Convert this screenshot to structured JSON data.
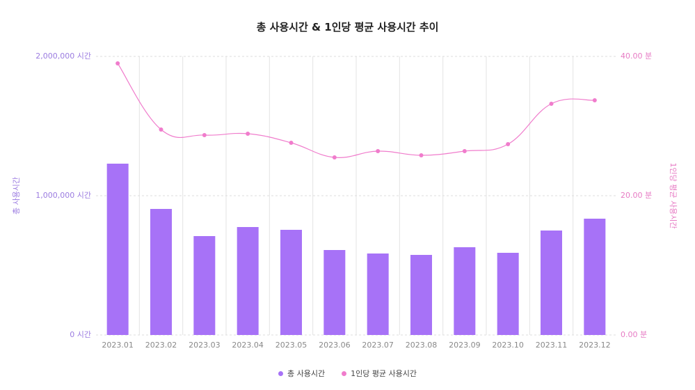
{
  "chart_data": {
    "type": "bar+line",
    "title": "총 사용시간 & 1인당 평균 사용시간 추이",
    "categories": [
      "2023.01",
      "2023.02",
      "2023.03",
      "2023.04",
      "2023.05",
      "2023.06",
      "2023.07",
      "2023.08",
      "2023.09",
      "2023.10",
      "2023.11",
      "2023.12"
    ],
    "series": [
      {
        "name": "총 사용시간",
        "type": "bar",
        "axis": "left",
        "color": "#a772f7",
        "values": [
          1230000,
          905000,
          710000,
          775000,
          755000,
          610000,
          585000,
          575000,
          630000,
          590000,
          750000,
          835000
        ]
      },
      {
        "name": "1인당 평균 사용시간",
        "type": "line",
        "axis": "right",
        "color": "#f07ccc",
        "values": [
          39.0,
          29.5,
          28.7,
          28.9,
          27.6,
          25.5,
          26.4,
          25.8,
          26.4,
          27.4,
          33.2,
          33.7
        ]
      }
    ],
    "ylabel_left": "총 사용시간",
    "ylabel_right": "1인당 평균 사용시간",
    "ylim_left": [
      0,
      2000000
    ],
    "ylim_right": [
      0,
      40
    ],
    "yticks_left": [
      "0 시간",
      "1,000,000 시간",
      "2,000,000 시간"
    ],
    "yticks_right": [
      "0.00 분",
      "20.00 분",
      "40.00 분"
    ],
    "grid": true,
    "legend_position": "bottom"
  }
}
